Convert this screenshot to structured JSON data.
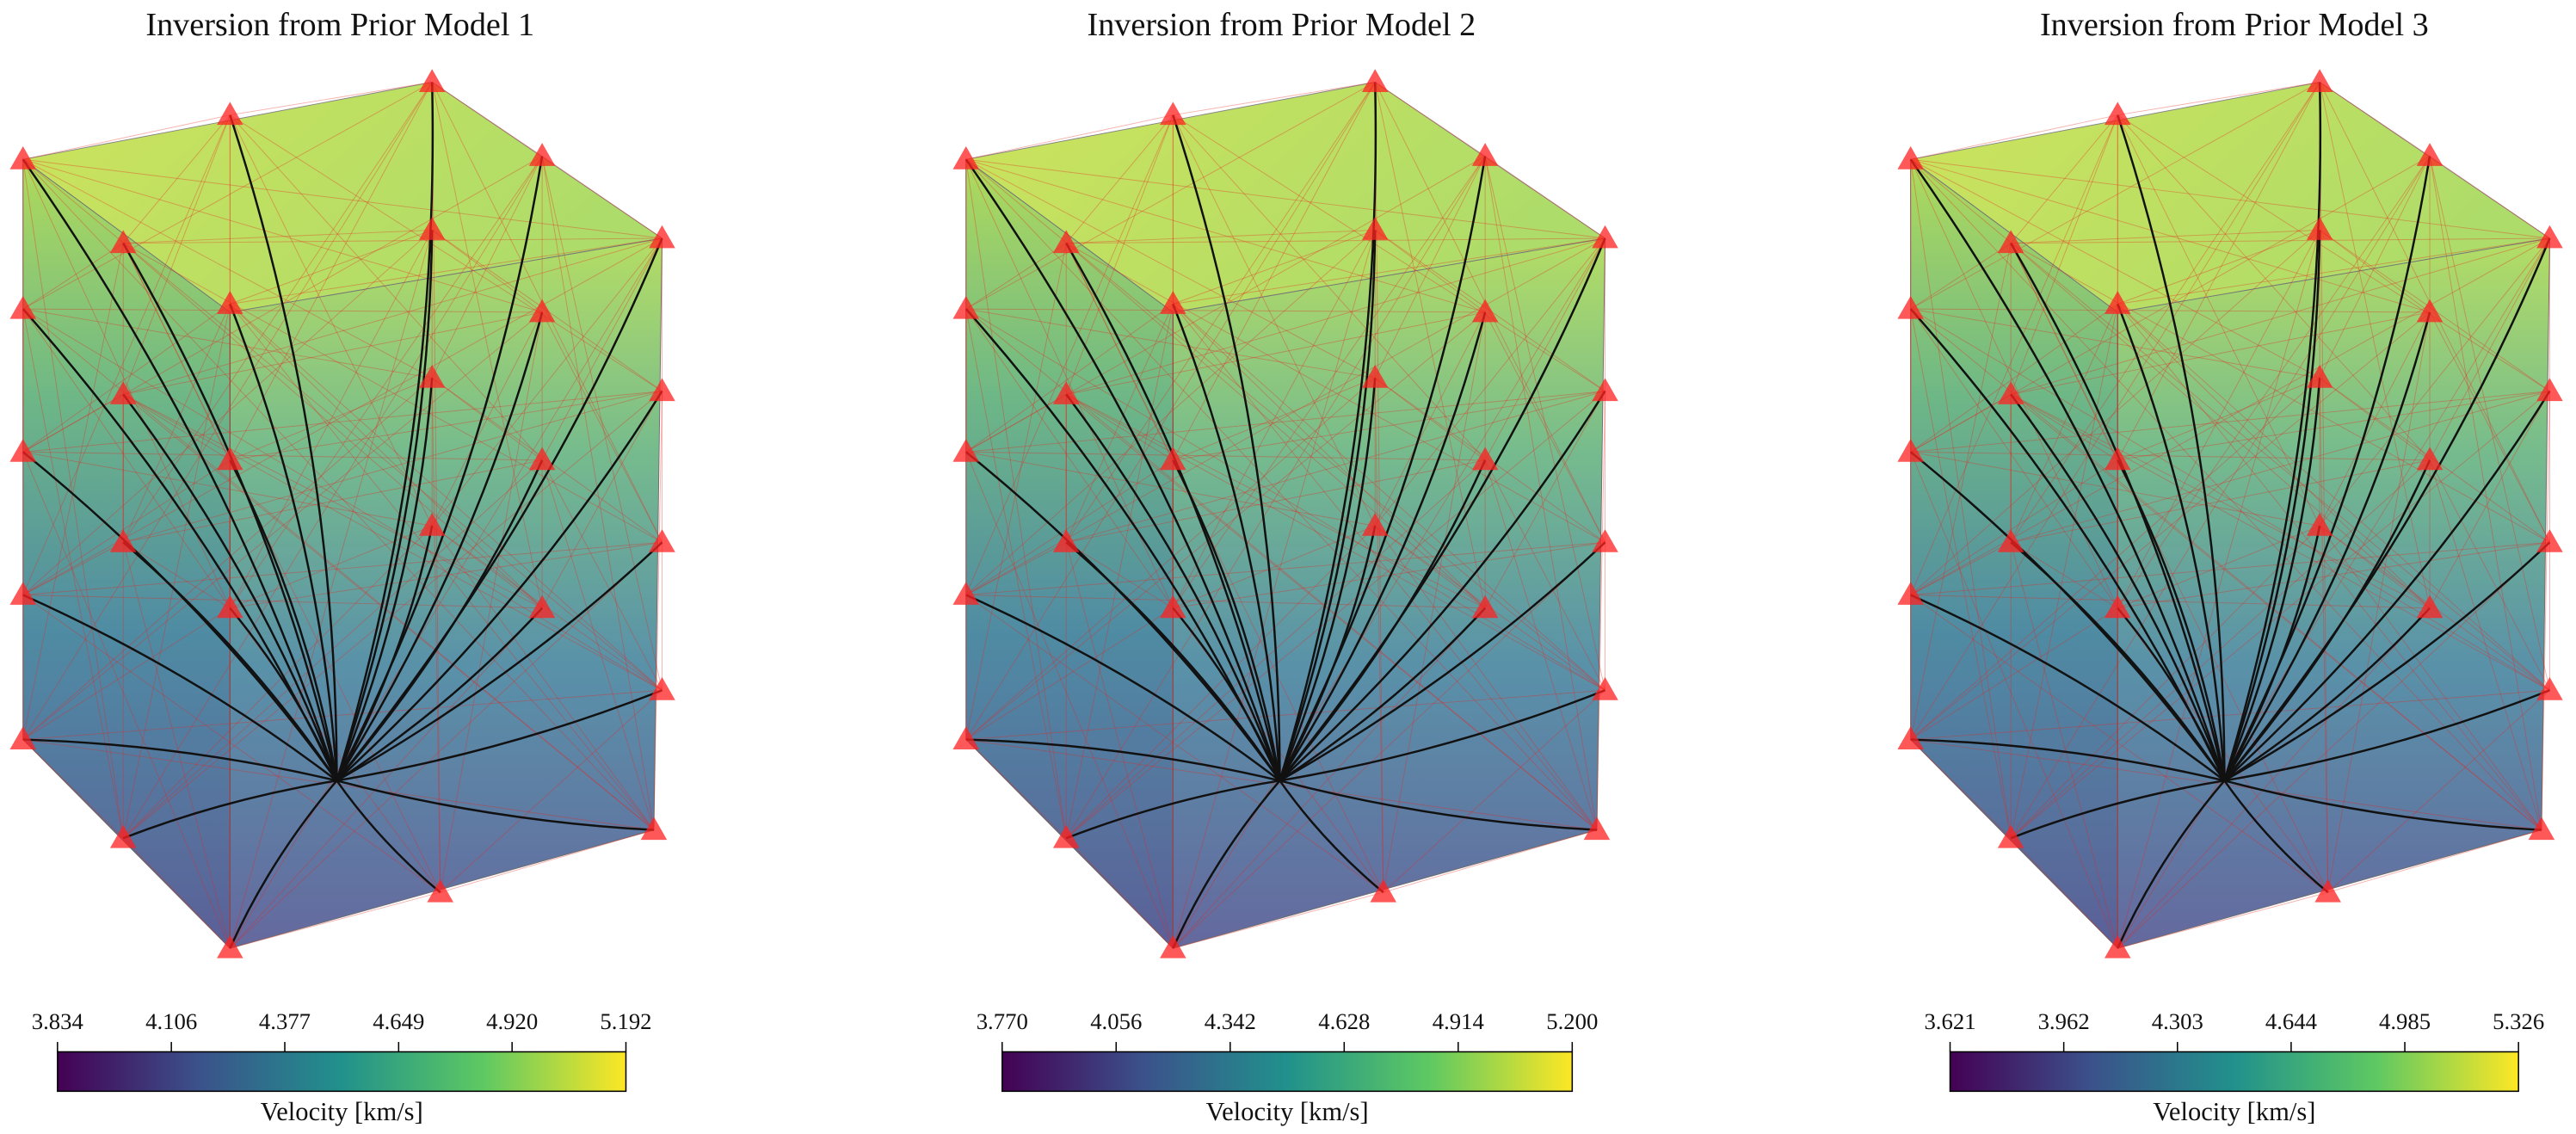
{
  "panels": [
    {
      "title": "Inversion from Prior Model 1",
      "colorbar": {
        "label": "Velocity [km/s]",
        "clim": [
          3.834,
          5.192
        ],
        "ticks": [
          3.834,
          4.106,
          4.377,
          4.649,
          {
            "value": 4.92,
            "label": "4.920"
          },
          5.192
        ]
      }
    },
    {
      "title": "Inversion from Prior Model 2",
      "colorbar": {
        "label": "Velocity [km/s]",
        "clim": [
          3.77,
          5.2
        ],
        "ticks": [
          {
            "value": 3.77,
            "label": "3.770"
          },
          4.056,
          4.342,
          4.628,
          4.914,
          {
            "value": 5.2,
            "label": "5.200"
          }
        ]
      }
    },
    {
      "title": "Inversion from Prior Model 3",
      "colorbar": {
        "label": "Velocity [km/s]",
        "clim": [
          3.621,
          5.326
        ],
        "ticks": [
          3.621,
          3.962,
          4.303,
          4.644,
          4.985,
          5.326
        ]
      }
    }
  ]
}
